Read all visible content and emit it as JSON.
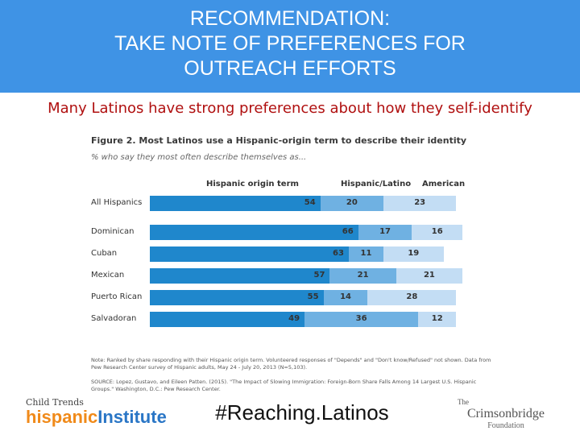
{
  "slide": {
    "title_lines": [
      "RECOMMENDATION:",
      "TAKE NOTE OF PREFERENCES FOR",
      "OUTREACH EFFORTS"
    ],
    "subtitle": "Many Latinos have strong preferences about how they self-identify",
    "hashtag": "#Reaching.Latinos",
    "banner_color": "#3f93e5",
    "subtitle_color": "#b01010"
  },
  "logos": {
    "left_line1": "Child Trends",
    "left_part1": "hispanic",
    "left_part2": "Institute",
    "right_prefix": "The",
    "right_name": "Crimsonbridge",
    "right_sub": "Foundation"
  },
  "chart_data": {
    "type": "bar",
    "stacked": true,
    "orientation": "horizontal",
    "title": "Figure 2. Most Latinos use a Hispanic-origin term to describe their identity",
    "subtitle": "% who say they most often describe themselves as...",
    "categories": [
      "All Hispanics",
      "Dominican",
      "Cuban",
      "Mexican",
      "Puerto Rican",
      "Salvadoran"
    ],
    "series": [
      {
        "name": "Hispanic origin term",
        "color": "#1f87cc",
        "values": [
          54,
          66,
          63,
          57,
          55,
          49
        ]
      },
      {
        "name": "Hispanic/Latino",
        "color": "#6fb1e2",
        "values": [
          20,
          17,
          11,
          21,
          14,
          36
        ]
      },
      {
        "name": "American",
        "color": "#c3ddf4",
        "values": [
          23,
          16,
          19,
          21,
          28,
          12
        ]
      }
    ],
    "xlim": [
      0,
      100
    ],
    "notes": [
      "Note: Ranked by share responding with their Hispanic origin term. Volunteered responses of \"Depends\" and \"Don't know/Refused\" not shown. Data from",
      "Pew Research Center survey of Hispanic adults, May 24 - July 20, 2013 (N=5,103).",
      "SOURCE: Lopez, Gustavo, and Eileen Patten. (2015). \"The Impact of Slowing Immigration: Foreign-Born Share Falls Among 14 Largest U.S. Hispanic",
      "Groups.\" Washington, D.C.: Pew Research Center."
    ]
  }
}
